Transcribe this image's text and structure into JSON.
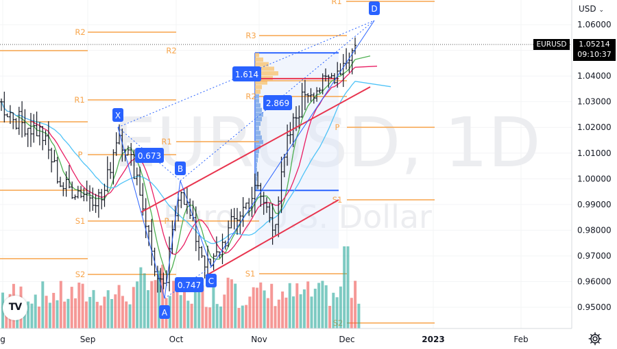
{
  "symbol": "EURUSD",
  "currency": "USD",
  "watermark": {
    "line1": "EURUSD, 1D",
    "line2": "Euro / U.S. Dollar"
  },
  "last_price": "1.05214",
  "countdown": "09:10:37",
  "currency_chevron": "chevron-down-icon",
  "logo_text": "TV",
  "colors": {
    "up": "#131722",
    "vol_up": "#26a69a",
    "vol_down": "#ef5350",
    "pivot": "#f7a44a",
    "label": "#2962ff",
    "channel": "#e8344e",
    "ma1": "#4caf50",
    "ma2": "#e91e63",
    "ma3": "#4fc3f7"
  },
  "chart_data": {
    "type": "candlestick",
    "y_axis": {
      "min": 0.94,
      "max": 1.065,
      "ticks": [
        "1.06000",
        "1.05000",
        "1.04000",
        "1.03000",
        "1.02000",
        "1.01000",
        "1.00000",
        "0.99000",
        "0.98000",
        "0.97000",
        "0.96000",
        "0.95000"
      ]
    },
    "x_axis": {
      "ticks": [
        "g",
        "Sep",
        "Oct",
        "Nov",
        "Dec",
        "2023",
        "Feb"
      ]
    },
    "harmonic_pattern": {
      "points": [
        {
          "label": "X",
          "date": "2022-09-12",
          "price": 1.0197
        },
        {
          "label": "A",
          "date": "2022-09-28",
          "price": 0.9536
        },
        {
          "label": "B",
          "date": "2022-10-04",
          "price": 0.9999
        },
        {
          "label": "C",
          "date": "2022-10-13",
          "price": 0.9632
        },
        {
          "label": "D",
          "date": "2022-12-05",
          "price": 1.0615
        }
      ],
      "ratios": [
        {
          "value": "0.673",
          "between": "XA-B"
        },
        {
          "value": "0.747",
          "between": "AB-C"
        },
        {
          "value": "1.614",
          "between": "XA-D"
        },
        {
          "value": "2.869",
          "between": "BC-D"
        }
      ]
    },
    "pivot_levels": [
      {
        "label": "R1",
        "price": 1.0648
      },
      {
        "label": "R2",
        "price": 1.0555
      },
      {
        "label": "R3",
        "price": 1.0555
      },
      {
        "label": "R2",
        "price": 1.0484
      },
      {
        "label": "R1",
        "price": 1.0312
      },
      {
        "label": "R2",
        "price": 1.0312
      },
      {
        "label": "P",
        "price": 1.021
      },
      {
        "label": "R1",
        "price": 1.0155
      },
      {
        "label": "P",
        "price": 1.01
      },
      {
        "label": "S1",
        "price": 0.9925
      },
      {
        "label": "S1",
        "price": 0.985
      },
      {
        "label": "P",
        "price": 0.985
      },
      {
        "label": "S2",
        "price": 0.964
      },
      {
        "label": "S1",
        "price": 0.964
      },
      {
        "label": "S2",
        "price": 0.9448
      }
    ],
    "pivot_levels_unlabeled": [
      {
        "price": 1.0212
      },
      {
        "price": 0.9955
      },
      {
        "price": 0.969
      },
      {
        "price": 1.039
      }
    ],
    "volume_profile": {
      "from_price": 0.9955,
      "to_price": 1.049,
      "poc_price": 1.039
    }
  }
}
